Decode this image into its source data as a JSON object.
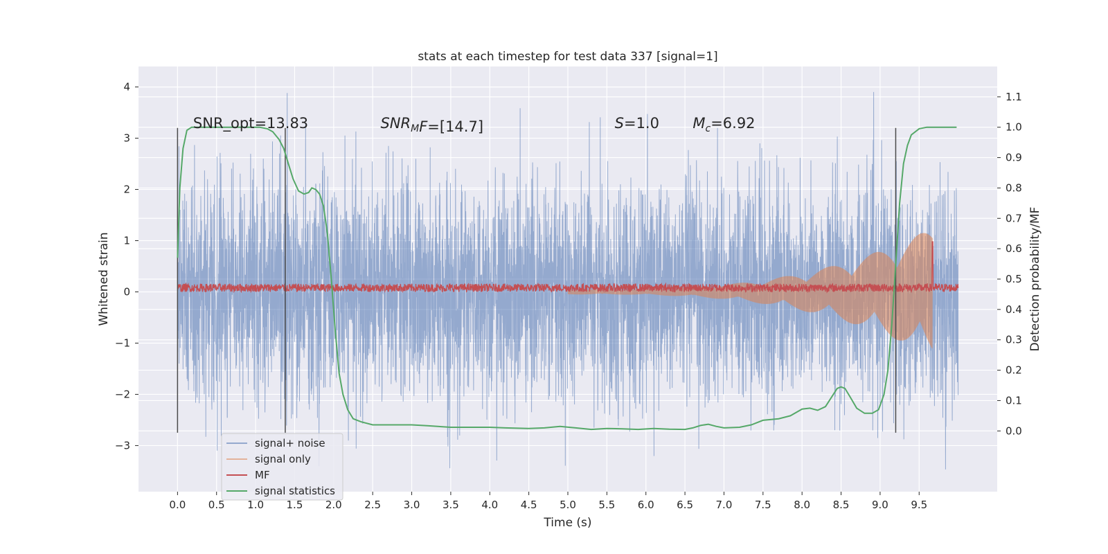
{
  "chart_data": {
    "type": "line",
    "title": "stats at each timestep for test data 337 [signal=1]",
    "xlabel": "Time (s)",
    "ylabel": "Whitened strain",
    "y2label": "Detection probability/MF",
    "xlim": [
      -0.5,
      10.5
    ],
    "ylim": [
      -3.9,
      4.4
    ],
    "y2lim": [
      -0.2,
      1.2
    ],
    "xticks": [
      0.0,
      0.5,
      1.0,
      1.5,
      2.0,
      2.5,
      3.0,
      3.5,
      4.0,
      4.5,
      5.0,
      5.5,
      6.0,
      6.5,
      7.0,
      7.5,
      8.0,
      8.5,
      9.0,
      9.5
    ],
    "xtick_labels": [
      "0.0",
      "0.5",
      "1.0",
      "1.5",
      "2.0",
      "2.5",
      "3.0",
      "3.5",
      "4.0",
      "4.5",
      "5.0",
      "5.5",
      "6.0",
      "6.5",
      "7.0",
      "7.5",
      "8.0",
      "8.5",
      "9.0",
      "9.5"
    ],
    "yticks": [
      -3,
      -2,
      -1,
      0,
      1,
      2,
      3,
      4
    ],
    "ytick_labels": [
      "−3",
      "−2",
      "−1",
      "0",
      "1",
      "2",
      "3",
      "4"
    ],
    "y2ticks": [
      0.0,
      0.1,
      0.2,
      0.3,
      0.4,
      0.5,
      0.6,
      0.7,
      0.8,
      0.9,
      1.0,
      1.1
    ],
    "y2tick_labels": [
      "0.0",
      "0.1",
      "0.2",
      "0.3",
      "0.4",
      "0.5",
      "0.6",
      "0.7",
      "0.8",
      "0.9",
      "1.0",
      "1.1"
    ],
    "grid": true,
    "legend_position": "lower-left",
    "annotations": [
      {
        "id": "snr-opt",
        "text": "SNR_opt=13.83",
        "x": 0.2,
        "y": 3.2
      },
      {
        "id": "snr-mf",
        "prefix": "SNR",
        "sub": "M",
        "suffix": "F=[14.7]",
        "x": 2.6,
        "y": 3.2
      },
      {
        "id": "s-value",
        "prefix": "S",
        "suffix": "=1.0",
        "x": 5.6,
        "y": 3.2
      },
      {
        "id": "mc-value",
        "prefix": "M",
        "sub": "c",
        "suffix": "=6.92",
        "x": 6.6,
        "y": 3.2
      }
    ],
    "vlines": [
      {
        "x": 0.0,
        "y_range": [
          -2.75,
          3.2
        ]
      },
      {
        "x": 1.38,
        "y_range": [
          -2.75,
          3.2
        ]
      },
      {
        "x": 9.2,
        "y_range": [
          -2.75,
          3.2
        ]
      }
    ],
    "series": [
      {
        "name": "signal+ noise",
        "color": "#4c72b0",
        "axis": "left",
        "description_values": {
          "t_range": [
            0.0,
            10.0
          ],
          "typical_amplitude": 1.2,
          "peak_max": 4.05,
          "peak_min": -3.6
        }
      },
      {
        "name": "signal only",
        "color": "#dd8452",
        "axis": "left",
        "description_values": {
          "t_range": [
            5.0,
            9.67
          ],
          "envelope_start": 0.05,
          "envelope_end": 1.25
        }
      },
      {
        "name": "MF",
        "color": "#c44e52",
        "axis": "left",
        "description_values": {
          "t_range": [
            0.0,
            10.0
          ],
          "baseline": 0.08,
          "jitter": 0.08,
          "spike_t": 9.67,
          "spike_value": 0.98
        }
      },
      {
        "name": "signal statistics",
        "color": "#55a868",
        "axis": "right",
        "x": [
          0.0,
          0.03,
          0.07,
          0.12,
          0.18,
          0.25,
          0.35,
          0.5,
          0.7,
          0.9,
          1.05,
          1.15,
          1.22,
          1.3,
          1.36,
          1.42,
          1.48,
          1.55,
          1.62,
          1.68,
          1.72,
          1.77,
          1.82,
          1.87,
          1.92,
          1.97,
          2.02,
          2.07,
          2.12,
          2.18,
          2.25,
          2.35,
          2.5,
          2.7,
          3.0,
          3.2,
          3.5,
          3.8,
          4.0,
          4.2,
          4.5,
          4.7,
          4.9,
          5.1,
          5.3,
          5.5,
          5.7,
          5.9,
          6.1,
          6.3,
          6.5,
          6.6,
          6.7,
          6.8,
          6.9,
          7.0,
          7.2,
          7.35,
          7.5,
          7.7,
          7.85,
          8.0,
          8.1,
          8.2,
          8.3,
          8.45,
          8.5,
          8.55,
          8.62,
          8.7,
          8.8,
          8.9,
          8.98,
          9.05,
          9.1,
          9.15,
          9.2,
          9.25,
          9.3,
          9.35,
          9.4,
          9.5,
          9.6,
          9.8,
          9.98
        ],
        "y": [
          0.57,
          0.8,
          0.93,
          0.99,
          1.0,
          1.0,
          1.0,
          1.0,
          1.0,
          1.0,
          1.0,
          0.995,
          0.985,
          0.96,
          0.93,
          0.88,
          0.83,
          0.79,
          0.78,
          0.785,
          0.8,
          0.795,
          0.78,
          0.74,
          0.65,
          0.5,
          0.33,
          0.19,
          0.12,
          0.07,
          0.04,
          0.03,
          0.02,
          0.02,
          0.02,
          0.017,
          0.012,
          0.012,
          0.012,
          0.01,
          0.008,
          0.01,
          0.015,
          0.01,
          0.005,
          0.008,
          0.007,
          0.005,
          0.008,
          0.006,
          0.005,
          0.01,
          0.018,
          0.022,
          0.015,
          0.01,
          0.012,
          0.02,
          0.035,
          0.04,
          0.05,
          0.072,
          0.075,
          0.068,
          0.08,
          0.14,
          0.145,
          0.14,
          0.11,
          0.075,
          0.058,
          0.058,
          0.07,
          0.12,
          0.2,
          0.35,
          0.55,
          0.75,
          0.88,
          0.94,
          0.975,
          0.995,
          1.0,
          1.0,
          1.0
        ]
      }
    ]
  }
}
